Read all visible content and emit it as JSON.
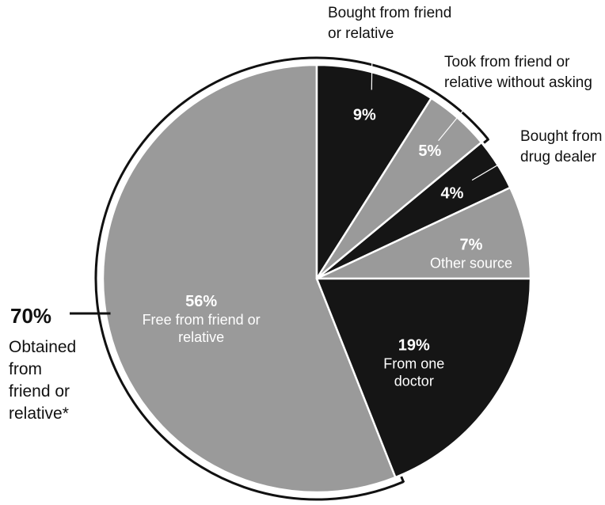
{
  "chart_data": {
    "type": "pie",
    "slices": [
      {
        "label": "Free from friend or relative",
        "value": 56,
        "value_label": "56%",
        "color": "#9a9a9a",
        "text_color": "#ffffff"
      },
      {
        "label": "Bought from friend or relative",
        "value": 9,
        "value_label": "9%",
        "color": "#151515",
        "text_color": "#ffffff"
      },
      {
        "label": "Took from friend or relative without asking",
        "value": 5,
        "value_label": "5%",
        "color": "#9a9a9a",
        "text_color": "#ffffff"
      },
      {
        "label": "Bought from drug dealer",
        "value": 4,
        "value_label": "4%",
        "color": "#151515",
        "text_color": "#ffffff"
      },
      {
        "label": "Other source",
        "value": 7,
        "value_label": "7%",
        "color": "#9a9a9a",
        "text_color": "#ffffff"
      },
      {
        "label": "From one doctor",
        "value": 19,
        "value_label": "19%",
        "color": "#151515",
        "text_color": "#ffffff"
      }
    ],
    "inside_labels": {
      "free": [
        "Free from friend or",
        "relative"
      ],
      "other": [
        "Other source"
      ],
      "doctor": [
        "From one",
        "doctor"
      ]
    },
    "outside_labels": {
      "bought_friend": [
        "Bought from friend",
        "or relative"
      ],
      "took": [
        "Took from friend or",
        "relative without asking"
      ],
      "dealer": [
        "Bought from",
        "drug dealer"
      ]
    },
    "bracket": {
      "value_label": "70%",
      "text": [
        "Obtained",
        "from",
        "friend or",
        "relative*"
      ]
    }
  }
}
